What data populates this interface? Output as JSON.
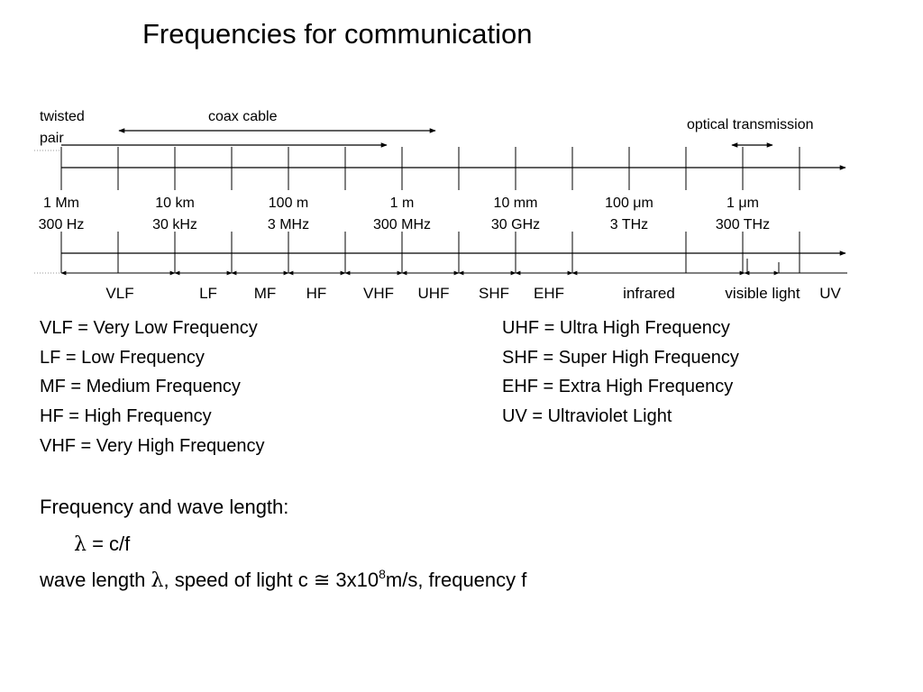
{
  "title": "Frequencies for communication",
  "media": {
    "twisted_pair": [
      "twisted",
      "pair"
    ],
    "coax": "coax cable",
    "optical": "optical transmission"
  },
  "scale": [
    {
      "wavelength": "1 Mm",
      "frequency": "300 Hz"
    },
    {
      "wavelength": "10 km",
      "frequency": "30 kHz"
    },
    {
      "wavelength": "100 m",
      "frequency": "3 MHz"
    },
    {
      "wavelength": "1 m",
      "frequency": "300 MHz"
    },
    {
      "wavelength": "10 mm",
      "frequency": "30 GHz"
    },
    {
      "wavelength": "100 μm",
      "frequency": "3 THz"
    },
    {
      "wavelength": "1 μm",
      "frequency": "300 THz"
    }
  ],
  "bands": [
    "VLF",
    "LF",
    "MF",
    "HF",
    "VHF",
    "UHF",
    "SHF",
    "EHF",
    "infrared",
    "visible light",
    "UV"
  ],
  "definitions_left": [
    "VLF = Very Low Frequency",
    "LF = Low Frequency",
    "MF = Medium Frequency",
    "HF = High Frequency",
    "VHF = Very High Frequency"
  ],
  "definitions_right": [
    "UHF = Ultra High Frequency",
    "SHF = Super High Frequency",
    "EHF = Extra High Frequency",
    "UV = Ultraviolet Light"
  ],
  "formula": {
    "heading": "Frequency and wave length:",
    "lambda": "λ",
    "equation": " = c/f",
    "line_prefix": "wave length ",
    "line_mid": ", speed of light c ",
    "approx": "≅",
    "base": " 3x10",
    "exponent": "8",
    "line_suffix": "m/s, frequency f"
  },
  "colors": {
    "line": "#000000",
    "dotted": "#999999"
  }
}
